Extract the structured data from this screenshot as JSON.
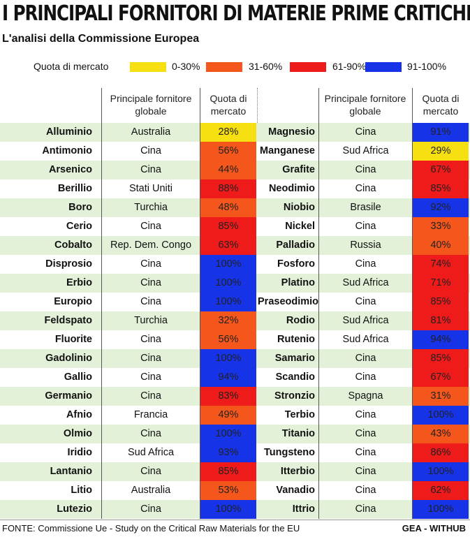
{
  "title": "I PRINCIPALI FORNITORI DI MATERIE PRIME CRITICHE",
  "subtitle": "L'analisi della Commissione Europea",
  "legend": {
    "label": "Quota di mercato",
    "items": [
      {
        "range": "0-30%",
        "color": "#f7e011"
      },
      {
        "range": "31-60%",
        "color": "#f5561b"
      },
      {
        "range": "61-90%",
        "color": "#ef1a1a"
      },
      {
        "range": "91-100%",
        "color": "#1633e8"
      }
    ]
  },
  "headers": {
    "supplier": "Principale fornitore globale",
    "share": "Quota di mercato"
  },
  "left": [
    {
      "material": "Alluminio",
      "supplier": "Australia",
      "share": "28%"
    },
    {
      "material": "Antimonio",
      "supplier": "Cina",
      "share": "56%"
    },
    {
      "material": "Arsenico",
      "supplier": "Cina",
      "share": "44%"
    },
    {
      "material": "Berillio",
      "supplier": "Stati Uniti",
      "share": "88%"
    },
    {
      "material": "Boro",
      "supplier": "Turchia",
      "share": "48%"
    },
    {
      "material": "Cerio",
      "supplier": "Cina",
      "share": "85%"
    },
    {
      "material": "Cobalto",
      "supplier": "Rep. Dem. Congo",
      "share": "63%"
    },
    {
      "material": "Disprosio",
      "supplier": "Cina",
      "share": "100%"
    },
    {
      "material": "Erbio",
      "supplier": "Cina",
      "share": "100%"
    },
    {
      "material": "Europio",
      "supplier": "Cina",
      "share": "100%"
    },
    {
      "material": "Feldspato",
      "supplier": "Turchia",
      "share": "32%"
    },
    {
      "material": "Fluorite",
      "supplier": "Cina",
      "share": "56%"
    },
    {
      "material": "Gadolinio",
      "supplier": "Cina",
      "share": "100%"
    },
    {
      "material": "Gallio",
      "supplier": "Cina",
      "share": "94%"
    },
    {
      "material": "Germanio",
      "supplier": "Cina",
      "share": "83%"
    },
    {
      "material": "Afnio",
      "supplier": "Francia",
      "share": "49%"
    },
    {
      "material": "Olmio",
      "supplier": "Cina",
      "share": "100%"
    },
    {
      "material": "Iridio",
      "supplier": "Sud Africa",
      "share": "93%"
    },
    {
      "material": "Lantanio",
      "supplier": "Cina",
      "share": "85%"
    },
    {
      "material": "Litio",
      "supplier": "Australia",
      "share": "53%"
    },
    {
      "material": "Lutezio",
      "supplier": "Cina",
      "share": "100%"
    }
  ],
  "right": [
    {
      "material": "Magnesio",
      "supplier": "Cina",
      "share": "91%"
    },
    {
      "material": "Manganese",
      "supplier": "Sud Africa",
      "share": "29%"
    },
    {
      "material": "Grafite",
      "supplier": "Cina",
      "share": "67%"
    },
    {
      "material": "Neodimio",
      "supplier": "Cina",
      "share": "85%"
    },
    {
      "material": "Niobio",
      "supplier": "Brasile",
      "share": "92%"
    },
    {
      "material": "Nickel",
      "supplier": "Cina",
      "share": "33%"
    },
    {
      "material": "Palladio",
      "supplier": "Russia",
      "share": "40%"
    },
    {
      "material": "Fosforo",
      "supplier": "Cina",
      "share": "74%"
    },
    {
      "material": "Platino",
      "supplier": "Sud Africa",
      "share": "71%"
    },
    {
      "material": "Praseodimio",
      "supplier": "Cina",
      "share": "85%"
    },
    {
      "material": "Rodio",
      "supplier": "Sud Africa",
      "share": "81%"
    },
    {
      "material": "Rutenio",
      "supplier": "Sud Africa",
      "share": "94%"
    },
    {
      "material": "Samario",
      "supplier": "Cina",
      "share": "85%"
    },
    {
      "material": "Scandio",
      "supplier": "Cina",
      "share": "67%"
    },
    {
      "material": "Stronzio",
      "supplier": "Spagna",
      "share": "31%"
    },
    {
      "material": "Terbio",
      "supplier": "Cina",
      "share": "100%"
    },
    {
      "material": "Titanio",
      "supplier": "Cina",
      "share": "43%"
    },
    {
      "material": "Tungsteno",
      "supplier": "Cina",
      "share": "86%"
    },
    {
      "material": "Itterbio",
      "supplier": "Cina",
      "share": "100%"
    },
    {
      "material": "Vanadio",
      "supplier": "Cina",
      "share": "62%"
    },
    {
      "material": "Ittrio",
      "supplier": "Cina",
      "share": "100%"
    }
  ],
  "footer": {
    "source": "FONTE: Commissione Ue - Study on the Critical Raw Materials for the EU",
    "brand": "GEA - WITHUB"
  }
}
